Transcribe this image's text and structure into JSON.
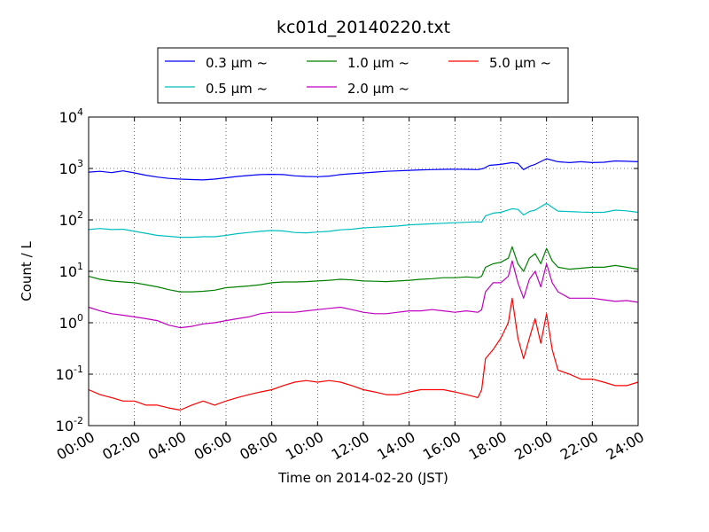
{
  "chart_data": {
    "type": "line",
    "title": "kc01d_20140220.txt",
    "xlabel": "Time on 2014-02-20 (JST)",
    "ylabel": "Count / L",
    "y_scale": "log",
    "xlim": [
      "00:00",
      "24:00"
    ],
    "ylim": [
      0.01,
      10000
    ],
    "grid": true,
    "legend_position": "top-center, above plot",
    "x_ticks": [
      "00:00",
      "02:00",
      "04:00",
      "06:00",
      "08:00",
      "10:00",
      "12:00",
      "14:00",
      "16:00",
      "18:00",
      "20:00",
      "22:00",
      "24:00"
    ],
    "y_ticks": [
      {
        "value": 0.01,
        "base": "10",
        "exp": "-2"
      },
      {
        "value": 0.1,
        "base": "10",
        "exp": "-1"
      },
      {
        "value": 1,
        "base": "10",
        "exp": "0"
      },
      {
        "value": 10,
        "base": "10",
        "exp": "1"
      },
      {
        "value": 100,
        "base": "10",
        "exp": "2"
      },
      {
        "value": 1000,
        "base": "10",
        "exp": "3"
      },
      {
        "value": 10000,
        "base": "10",
        "exp": "4"
      }
    ],
    "series": [
      {
        "name": "0.3 μm ~",
        "color": "#0000ff",
        "points": [
          [
            "00:00",
            850
          ],
          [
            "00:30",
            880
          ],
          [
            "01:00",
            830
          ],
          [
            "01:30",
            900
          ],
          [
            "02:00",
            820
          ],
          [
            "02:30",
            740
          ],
          [
            "03:00",
            680
          ],
          [
            "03:30",
            640
          ],
          [
            "04:00",
            620
          ],
          [
            "04:30",
            610
          ],
          [
            "05:00",
            600
          ],
          [
            "05:30",
            620
          ],
          [
            "06:00",
            660
          ],
          [
            "06:30",
            700
          ],
          [
            "07:00",
            730
          ],
          [
            "07:30",
            760
          ],
          [
            "08:00",
            770
          ],
          [
            "08:30",
            760
          ],
          [
            "09:00",
            720
          ],
          [
            "09:30",
            700
          ],
          [
            "10:00",
            690
          ],
          [
            "10:30",
            710
          ],
          [
            "11:00",
            760
          ],
          [
            "11:30",
            790
          ],
          [
            "12:00",
            820
          ],
          [
            "12:30",
            850
          ],
          [
            "13:00",
            880
          ],
          [
            "13:30",
            900
          ],
          [
            "14:00",
            920
          ],
          [
            "14:30",
            940
          ],
          [
            "15:00",
            950
          ],
          [
            "15:30",
            960
          ],
          [
            "16:00",
            970
          ],
          [
            "16:30",
            960
          ],
          [
            "17:00",
            950
          ],
          [
            "17:15",
            1000
          ],
          [
            "17:30",
            1150
          ],
          [
            "18:00",
            1200
          ],
          [
            "18:30",
            1300
          ],
          [
            "18:45",
            1250
          ],
          [
            "19:00",
            950
          ],
          [
            "19:15",
            1100
          ],
          [
            "19:30",
            1200
          ],
          [
            "20:00",
            1550
          ],
          [
            "20:30",
            1350
          ],
          [
            "21:00",
            1300
          ],
          [
            "21:30",
            1350
          ],
          [
            "22:00",
            1300
          ],
          [
            "22:30",
            1320
          ],
          [
            "23:00",
            1400
          ],
          [
            "23:30",
            1380
          ],
          [
            "24:00",
            1350
          ]
        ]
      },
      {
        "name": "0.5 μm ~",
        "color": "#00bfbf",
        "points": [
          [
            "00:00",
            65
          ],
          [
            "00:30",
            68
          ],
          [
            "01:00",
            65
          ],
          [
            "01:30",
            66
          ],
          [
            "02:00",
            60
          ],
          [
            "02:30",
            55
          ],
          [
            "03:00",
            50
          ],
          [
            "03:30",
            48
          ],
          [
            "04:00",
            46
          ],
          [
            "04:30",
            46
          ],
          [
            "05:00",
            47
          ],
          [
            "05:30",
            47
          ],
          [
            "06:00",
            50
          ],
          [
            "06:30",
            54
          ],
          [
            "07:00",
            57
          ],
          [
            "07:30",
            60
          ],
          [
            "08:00",
            62
          ],
          [
            "08:30",
            61
          ],
          [
            "09:00",
            57
          ],
          [
            "09:30",
            56
          ],
          [
            "10:00",
            58
          ],
          [
            "10:30",
            60
          ],
          [
            "11:00",
            64
          ],
          [
            "11:30",
            66
          ],
          [
            "12:00",
            70
          ],
          [
            "12:30",
            72
          ],
          [
            "13:00",
            74
          ],
          [
            "13:30",
            76
          ],
          [
            "14:00",
            80
          ],
          [
            "14:30",
            82
          ],
          [
            "15:00",
            84
          ],
          [
            "15:30",
            86
          ],
          [
            "16:00",
            88
          ],
          [
            "16:30",
            90
          ],
          [
            "17:00",
            92
          ],
          [
            "17:10",
            90
          ],
          [
            "17:20",
            120
          ],
          [
            "17:40",
            135
          ],
          [
            "18:00",
            140
          ],
          [
            "18:30",
            165
          ],
          [
            "18:45",
            160
          ],
          [
            "19:00",
            125
          ],
          [
            "19:15",
            145
          ],
          [
            "19:30",
            155
          ],
          [
            "20:00",
            210
          ],
          [
            "20:15",
            175
          ],
          [
            "20:30",
            148
          ],
          [
            "21:00",
            145
          ],
          [
            "21:30",
            142
          ],
          [
            "22:00",
            140
          ],
          [
            "22:30",
            140
          ],
          [
            "23:00",
            155
          ],
          [
            "23:30",
            150
          ],
          [
            "24:00",
            140
          ]
        ]
      },
      {
        "name": "1.0 μm ~",
        "color": "#008000",
        "points": [
          [
            "00:00",
            8
          ],
          [
            "00:30",
            7
          ],
          [
            "01:00",
            6.5
          ],
          [
            "01:30",
            6.2
          ],
          [
            "02:00",
            6
          ],
          [
            "02:30",
            5.5
          ],
          [
            "03:00",
            5
          ],
          [
            "03:30",
            4.4
          ],
          [
            "04:00",
            4
          ],
          [
            "04:30",
            4
          ],
          [
            "05:00",
            4.1
          ],
          [
            "05:30",
            4.3
          ],
          [
            "06:00",
            4.8
          ],
          [
            "06:30",
            5
          ],
          [
            "07:00",
            5.2
          ],
          [
            "07:30",
            5.5
          ],
          [
            "08:00",
            6
          ],
          [
            "08:30",
            6.2
          ],
          [
            "09:00",
            6.2
          ],
          [
            "09:30",
            6.3
          ],
          [
            "10:00",
            6.5
          ],
          [
            "10:30",
            6.7
          ],
          [
            "11:00",
            7
          ],
          [
            "11:30",
            6.8
          ],
          [
            "12:00",
            6.5
          ],
          [
            "12:30",
            6.4
          ],
          [
            "13:00",
            6.3
          ],
          [
            "13:30",
            6.5
          ],
          [
            "14:00",
            6.7
          ],
          [
            "14:30",
            7
          ],
          [
            "15:00",
            7.2
          ],
          [
            "15:30",
            7.5
          ],
          [
            "16:00",
            7.5
          ],
          [
            "16:30",
            7.8
          ],
          [
            "17:00",
            7.5
          ],
          [
            "17:10",
            8
          ],
          [
            "17:20",
            12
          ],
          [
            "17:40",
            14
          ],
          [
            "18:00",
            15
          ],
          [
            "18:20",
            18
          ],
          [
            "18:30",
            30
          ],
          [
            "18:45",
            14
          ],
          [
            "19:00",
            10
          ],
          [
            "19:15",
            18
          ],
          [
            "19:30",
            22
          ],
          [
            "19:45",
            14
          ],
          [
            "20:00",
            28
          ],
          [
            "20:15",
            16
          ],
          [
            "20:30",
            12
          ],
          [
            "21:00",
            11
          ],
          [
            "21:30",
            11.5
          ],
          [
            "22:00",
            12
          ],
          [
            "22:30",
            12
          ],
          [
            "23:00",
            13
          ],
          [
            "23:30",
            12
          ],
          [
            "24:00",
            11
          ]
        ]
      },
      {
        "name": "2.0 μm ~",
        "color": "#bf00bf",
        "points": [
          [
            "00:00",
            2
          ],
          [
            "00:30",
            1.7
          ],
          [
            "01:00",
            1.5
          ],
          [
            "01:30",
            1.4
          ],
          [
            "02:00",
            1.3
          ],
          [
            "02:30",
            1.2
          ],
          [
            "03:00",
            1.1
          ],
          [
            "03:30",
            0.9
          ],
          [
            "04:00",
            0.8
          ],
          [
            "04:30",
            0.85
          ],
          [
            "05:00",
            0.95
          ],
          [
            "05:30",
            1
          ],
          [
            "06:00",
            1.1
          ],
          [
            "06:30",
            1.2
          ],
          [
            "07:00",
            1.3
          ],
          [
            "07:30",
            1.5
          ],
          [
            "08:00",
            1.6
          ],
          [
            "08:30",
            1.6
          ],
          [
            "09:00",
            1.6
          ],
          [
            "09:30",
            1.7
          ],
          [
            "10:00",
            1.8
          ],
          [
            "10:30",
            1.9
          ],
          [
            "11:00",
            2
          ],
          [
            "11:30",
            1.8
          ],
          [
            "12:00",
            1.6
          ],
          [
            "12:30",
            1.5
          ],
          [
            "13:00",
            1.5
          ],
          [
            "13:30",
            1.6
          ],
          [
            "14:00",
            1.7
          ],
          [
            "14:30",
            1.7
          ],
          [
            "15:00",
            1.8
          ],
          [
            "15:30",
            1.7
          ],
          [
            "16:00",
            1.6
          ],
          [
            "16:30",
            1.7
          ],
          [
            "17:00",
            1.6
          ],
          [
            "17:10",
            1.8
          ],
          [
            "17:20",
            4
          ],
          [
            "17:40",
            6
          ],
          [
            "18:00",
            6
          ],
          [
            "18:20",
            8
          ],
          [
            "18:30",
            16
          ],
          [
            "18:45",
            6
          ],
          [
            "19:00",
            3
          ],
          [
            "19:15",
            7
          ],
          [
            "19:30",
            10
          ],
          [
            "19:45",
            5
          ],
          [
            "20:00",
            14
          ],
          [
            "20:15",
            6
          ],
          [
            "20:30",
            4
          ],
          [
            "21:00",
            3
          ],
          [
            "21:30",
            3
          ],
          [
            "22:00",
            3
          ],
          [
            "22:30",
            2.8
          ],
          [
            "23:00",
            2.6
          ],
          [
            "23:30",
            2.7
          ],
          [
            "24:00",
            2.5
          ]
        ]
      },
      {
        "name": "5.0 μm ~",
        "color": "#ff0000",
        "points": [
          [
            "00:00",
            0.05
          ],
          [
            "00:30",
            0.04
          ],
          [
            "01:00",
            0.035
          ],
          [
            "01:30",
            0.03
          ],
          [
            "02:00",
            0.03
          ],
          [
            "02:30",
            0.025
          ],
          [
            "03:00",
            0.025
          ],
          [
            "03:30",
            0.022
          ],
          [
            "04:00",
            0.02
          ],
          [
            "04:30",
            0.025
          ],
          [
            "05:00",
            0.03
          ],
          [
            "05:30",
            0.025
          ],
          [
            "06:00",
            0.03
          ],
          [
            "06:30",
            0.035
          ],
          [
            "07:00",
            0.04
          ],
          [
            "07:30",
            0.045
          ],
          [
            "08:00",
            0.05
          ],
          [
            "08:30",
            0.06
          ],
          [
            "09:00",
            0.07
          ],
          [
            "09:30",
            0.075
          ],
          [
            "10:00",
            0.07
          ],
          [
            "10:30",
            0.075
          ],
          [
            "11:00",
            0.07
          ],
          [
            "11:30",
            0.06
          ],
          [
            "12:00",
            0.05
          ],
          [
            "12:30",
            0.045
          ],
          [
            "13:00",
            0.04
          ],
          [
            "13:30",
            0.04
          ],
          [
            "14:00",
            0.045
          ],
          [
            "14:30",
            0.05
          ],
          [
            "15:00",
            0.05
          ],
          [
            "15:30",
            0.05
          ],
          [
            "16:00",
            0.045
          ],
          [
            "16:30",
            0.04
          ],
          [
            "17:00",
            0.035
          ],
          [
            "17:10",
            0.05
          ],
          [
            "17:20",
            0.2
          ],
          [
            "17:40",
            0.3
          ],
          [
            "18:00",
            0.5
          ],
          [
            "18:20",
            1
          ],
          [
            "18:30",
            3
          ],
          [
            "18:45",
            0.5
          ],
          [
            "19:00",
            0.2
          ],
          [
            "19:15",
            0.5
          ],
          [
            "19:30",
            1.2
          ],
          [
            "19:45",
            0.4
          ],
          [
            "20:00",
            1.5
          ],
          [
            "20:15",
            0.3
          ],
          [
            "20:30",
            0.12
          ],
          [
            "21:00",
            0.1
          ],
          [
            "21:30",
            0.08
          ],
          [
            "22:00",
            0.08
          ],
          [
            "22:30",
            0.07
          ],
          [
            "23:00",
            0.06
          ],
          [
            "23:30",
            0.06
          ],
          [
            "24:00",
            0.07
          ]
        ]
      }
    ]
  }
}
